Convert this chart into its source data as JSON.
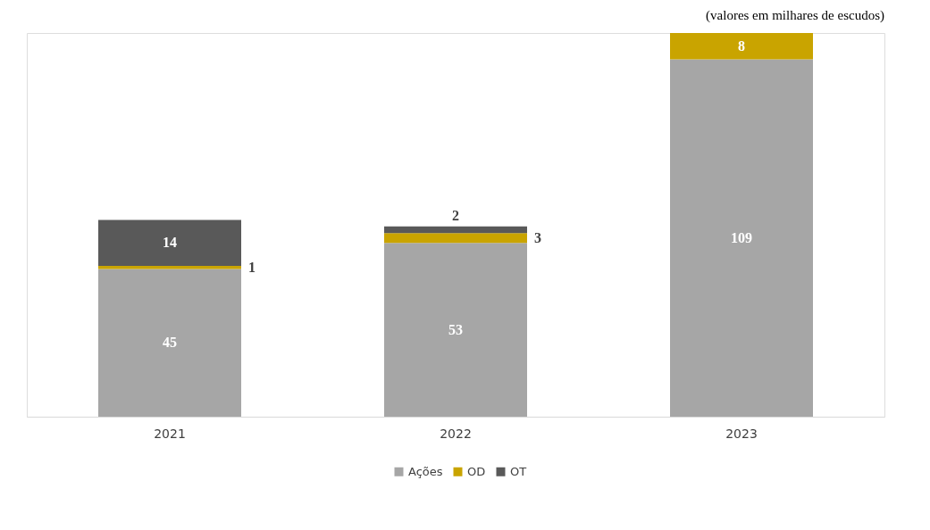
{
  "chart_data": {
    "type": "bar",
    "stacked": true,
    "categories": [
      "2021",
      "2022",
      "2023"
    ],
    "data_labels": true,
    "series": [
      {
        "name": "Ações",
        "color": "#a6a6a6",
        "values": [
          45,
          53,
          109
        ]
      },
      {
        "name": "OD",
        "color": "#c9a400",
        "values": [
          1,
          3,
          8
        ]
      },
      {
        "name": "OT",
        "color": "#595959",
        "values": [
          14,
          2,
          null
        ]
      }
    ],
    "legend": "bottom",
    "grid": false,
    "annotations": [
      "(valores em milhares de escudos)"
    ]
  }
}
